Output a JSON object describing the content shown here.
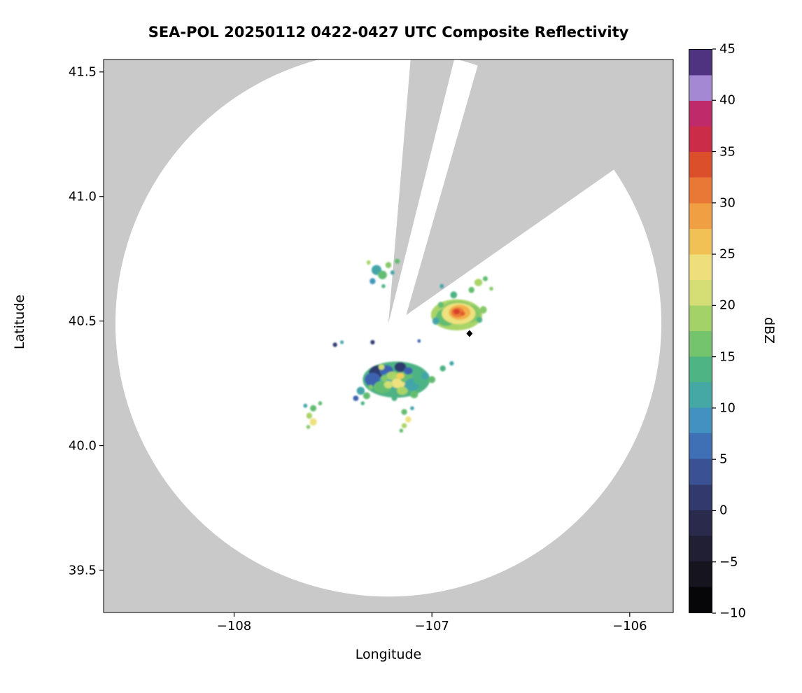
{
  "chart_data": {
    "type": "heatmap",
    "title": "SEA-POL 20250112 0422-0427 UTC Composite Reflectivity",
    "xlabel": "Longitude",
    "ylabel": "Latitude",
    "units": "dBZ",
    "xlim": [
      -108.66,
      -105.78
    ],
    "ylim": [
      39.33,
      41.55
    ],
    "grid": false,
    "x_ticks": [
      {
        "value": -108,
        "label": "−108"
      },
      {
        "value": -107,
        "label": "−107"
      },
      {
        "value": -106,
        "label": "−106"
      }
    ],
    "y_ticks": [
      {
        "value": 39.5,
        "label": "39.5"
      },
      {
        "value": 40.0,
        "label": "40.0"
      },
      {
        "value": 40.5,
        "label": "40.5"
      },
      {
        "value": 41.0,
        "label": "41.0"
      },
      {
        "value": 41.5,
        "label": "41.5"
      }
    ],
    "coverage_color": "#ffffff",
    "no_coverage_color": "#c9c9c9",
    "coverage": {
      "center_lon": -107.22,
      "center_lat": 40.49,
      "radius_lat_deg": 1.096
    },
    "blocked_sectors": [
      {
        "apex_lon": -107.22,
        "apex_lat": 40.49,
        "start_deg": 76.0,
        "end_deg": 85.2
      },
      {
        "apex_lon": -107.13,
        "apex_lat": 40.524,
        "start_deg": 35.0,
        "end_deg": 74.0
      }
    ],
    "radar_marker": {
      "lon": -106.81,
      "lat": 40.45,
      "color": "#000000"
    },
    "echo_format": "lon, lat, width_deg_lon (w), height_deg_lat (h), color_hex (c)",
    "echoes": [
      {
        "lon": -106.875,
        "lat": 40.525,
        "w": 0.26,
        "h": 0.125,
        "c": "#a9d468"
      },
      {
        "lon": -106.93,
        "lat": 40.515,
        "w": 0.1,
        "h": 0.07,
        "c": "#63bd71"
      },
      {
        "lon": -106.8,
        "lat": 40.53,
        "w": 0.09,
        "h": 0.07,
        "c": "#86c968"
      },
      {
        "lon": -106.87,
        "lat": 40.555,
        "w": 0.14,
        "h": 0.05,
        "c": "#86c968"
      },
      {
        "lon": -106.865,
        "lat": 40.53,
        "w": 0.17,
        "h": 0.085,
        "c": "#eee27f"
      },
      {
        "lon": -106.86,
        "lat": 40.535,
        "w": 0.11,
        "h": 0.06,
        "c": "#f2b04c"
      },
      {
        "lon": -106.87,
        "lat": 40.535,
        "w": 0.065,
        "h": 0.04,
        "c": "#ea7c36"
      },
      {
        "lon": -106.875,
        "lat": 40.538,
        "w": 0.035,
        "h": 0.022,
        "c": "#d8402a"
      },
      {
        "lon": -106.845,
        "lat": 40.53,
        "w": 0.025,
        "h": 0.018,
        "c": "#e25b2d"
      },
      {
        "lon": -106.98,
        "lat": 40.5,
        "w": 0.035,
        "h": 0.03,
        "c": "#43a5a8"
      },
      {
        "lon": -106.76,
        "lat": 40.505,
        "w": 0.03,
        "h": 0.025,
        "c": "#4db384"
      },
      {
        "lon": -106.74,
        "lat": 40.545,
        "w": 0.035,
        "h": 0.03,
        "c": "#86c968"
      },
      {
        "lon": -106.955,
        "lat": 40.565,
        "w": 0.03,
        "h": 0.025,
        "c": "#63bd71"
      },
      {
        "lon": -106.89,
        "lat": 40.605,
        "w": 0.035,
        "h": 0.028,
        "c": "#4db384"
      },
      {
        "lon": -106.8,
        "lat": 40.625,
        "w": 0.03,
        "h": 0.025,
        "c": "#63bd71"
      },
      {
        "lon": -106.765,
        "lat": 40.655,
        "w": 0.04,
        "h": 0.03,
        "c": "#a9d468"
      },
      {
        "lon": -106.73,
        "lat": 40.67,
        "w": 0.025,
        "h": 0.02,
        "c": "#63bd71"
      },
      {
        "lon": -106.95,
        "lat": 40.64,
        "w": 0.02,
        "h": 0.018,
        "c": "#43a5a8"
      },
      {
        "lon": -106.7,
        "lat": 40.63,
        "w": 0.02,
        "h": 0.016,
        "c": "#86c968"
      },
      {
        "lon": -107.28,
        "lat": 40.705,
        "w": 0.05,
        "h": 0.04,
        "c": "#43a5a8"
      },
      {
        "lon": -107.25,
        "lat": 40.685,
        "w": 0.045,
        "h": 0.035,
        "c": "#63bd71"
      },
      {
        "lon": -107.3,
        "lat": 40.66,
        "w": 0.03,
        "h": 0.025,
        "c": "#4396bc"
      },
      {
        "lon": -107.22,
        "lat": 40.725,
        "w": 0.03,
        "h": 0.025,
        "c": "#86c968"
      },
      {
        "lon": -107.2,
        "lat": 40.695,
        "w": 0.02,
        "h": 0.018,
        "c": "#43a5a8"
      },
      {
        "lon": -107.32,
        "lat": 40.735,
        "w": 0.02,
        "h": 0.018,
        "c": "#a9d468"
      },
      {
        "lon": -107.245,
        "lat": 40.64,
        "w": 0.02,
        "h": 0.016,
        "c": "#4db384"
      },
      {
        "lon": -107.175,
        "lat": 40.74,
        "w": 0.025,
        "h": 0.02,
        "c": "#63bd71"
      },
      {
        "lon": -107.18,
        "lat": 40.265,
        "w": 0.34,
        "h": 0.145,
        "c": "#4db384"
      },
      {
        "lon": -107.27,
        "lat": 40.29,
        "w": 0.1,
        "h": 0.065,
        "c": "#2f3a6e"
      },
      {
        "lon": -107.3,
        "lat": 40.265,
        "w": 0.08,
        "h": 0.055,
        "c": "#3c63b0"
      },
      {
        "lon": -107.23,
        "lat": 40.3,
        "w": 0.07,
        "h": 0.045,
        "c": "#3c63b0"
      },
      {
        "lon": -107.16,
        "lat": 40.315,
        "w": 0.06,
        "h": 0.04,
        "c": "#2f3a6e"
      },
      {
        "lon": -107.21,
        "lat": 40.26,
        "w": 0.11,
        "h": 0.065,
        "c": "#43a5a8"
      },
      {
        "lon": -107.25,
        "lat": 40.235,
        "w": 0.09,
        "h": 0.05,
        "c": "#63bd71"
      },
      {
        "lon": -107.2,
        "lat": 40.28,
        "w": 0.06,
        "h": 0.035,
        "c": "#a9d468"
      },
      {
        "lon": -107.17,
        "lat": 40.25,
        "w": 0.07,
        "h": 0.04,
        "c": "#eee27f"
      },
      {
        "lon": -107.22,
        "lat": 40.245,
        "w": 0.045,
        "h": 0.03,
        "c": "#cfdf72"
      },
      {
        "lon": -107.13,
        "lat": 40.275,
        "w": 0.065,
        "h": 0.045,
        "c": "#63bd71"
      },
      {
        "lon": -107.1,
        "lat": 40.245,
        "w": 0.075,
        "h": 0.05,
        "c": "#43a5a8"
      },
      {
        "lon": -107.065,
        "lat": 40.265,
        "w": 0.055,
        "h": 0.04,
        "c": "#4db384"
      },
      {
        "lon": -107.12,
        "lat": 40.3,
        "w": 0.045,
        "h": 0.03,
        "c": "#3c63b0"
      },
      {
        "lon": -107.255,
        "lat": 40.315,
        "w": 0.03,
        "h": 0.022,
        "c": "#cfdf72"
      },
      {
        "lon": -107.15,
        "lat": 40.22,
        "w": 0.055,
        "h": 0.032,
        "c": "#a9d468"
      },
      {
        "lon": -107.09,
        "lat": 40.205,
        "w": 0.04,
        "h": 0.03,
        "c": "#63bd71"
      },
      {
        "lon": -107.19,
        "lat": 40.19,
        "w": 0.028,
        "h": 0.022,
        "c": "#4db384"
      },
      {
        "lon": -107.035,
        "lat": 40.28,
        "w": 0.04,
        "h": 0.03,
        "c": "#43a5a8"
      },
      {
        "lon": -107.0,
        "lat": 40.265,
        "w": 0.035,
        "h": 0.028,
        "c": "#63bd71"
      },
      {
        "lon": -106.945,
        "lat": 40.31,
        "w": 0.03,
        "h": 0.024,
        "c": "#4db384"
      },
      {
        "lon": -106.9,
        "lat": 40.33,
        "w": 0.022,
        "h": 0.018,
        "c": "#43a5a8"
      },
      {
        "lon": -107.16,
        "lat": 40.28,
        "w": 0.04,
        "h": 0.025,
        "c": "#f2cf5a"
      },
      {
        "lon": -107.24,
        "lat": 40.27,
        "w": 0.035,
        "h": 0.025,
        "c": "#86c968"
      },
      {
        "lon": -107.49,
        "lat": 40.405,
        "w": 0.022,
        "h": 0.018,
        "c": "#2f3a6e"
      },
      {
        "lon": -107.455,
        "lat": 40.415,
        "w": 0.018,
        "h": 0.015,
        "c": "#43a5a8"
      },
      {
        "lon": -107.3,
        "lat": 40.415,
        "w": 0.022,
        "h": 0.018,
        "c": "#2f3a6e"
      },
      {
        "lon": -107.065,
        "lat": 40.42,
        "w": 0.016,
        "h": 0.014,
        "c": "#3c63b0"
      },
      {
        "lon": -107.6,
        "lat": 40.15,
        "w": 0.032,
        "h": 0.026,
        "c": "#63bd71"
      },
      {
        "lon": -107.62,
        "lat": 40.12,
        "w": 0.03,
        "h": 0.025,
        "c": "#a9d468"
      },
      {
        "lon": -107.6,
        "lat": 40.095,
        "w": 0.036,
        "h": 0.03,
        "c": "#eee27f"
      },
      {
        "lon": -107.64,
        "lat": 40.16,
        "w": 0.02,
        "h": 0.017,
        "c": "#43a5a8"
      },
      {
        "lon": -107.565,
        "lat": 40.17,
        "w": 0.02,
        "h": 0.017,
        "c": "#63bd71"
      },
      {
        "lon": -107.625,
        "lat": 40.075,
        "w": 0.02,
        "h": 0.016,
        "c": "#86c968"
      },
      {
        "lon": -107.36,
        "lat": 40.22,
        "w": 0.04,
        "h": 0.032,
        "c": "#43a5a8"
      },
      {
        "lon": -107.33,
        "lat": 40.2,
        "w": 0.036,
        "h": 0.028,
        "c": "#63bd71"
      },
      {
        "lon": -107.385,
        "lat": 40.19,
        "w": 0.028,
        "h": 0.022,
        "c": "#3c63b0"
      },
      {
        "lon": -107.31,
        "lat": 40.235,
        "w": 0.022,
        "h": 0.018,
        "c": "#86c968"
      },
      {
        "lon": -107.35,
        "lat": 40.17,
        "w": 0.02,
        "h": 0.016,
        "c": "#4db384"
      },
      {
        "lon": -107.14,
        "lat": 40.135,
        "w": 0.03,
        "h": 0.024,
        "c": "#63bd71"
      },
      {
        "lon": -107.12,
        "lat": 40.105,
        "w": 0.03,
        "h": 0.025,
        "c": "#eee27f"
      },
      {
        "lon": -107.14,
        "lat": 40.08,
        "w": 0.026,
        "h": 0.02,
        "c": "#a9d468"
      },
      {
        "lon": -107.1,
        "lat": 40.15,
        "w": 0.02,
        "h": 0.016,
        "c": "#43a5a8"
      },
      {
        "lon": -107.155,
        "lat": 40.06,
        "w": 0.02,
        "h": 0.016,
        "c": "#63bd71"
      }
    ],
    "colorbar": {
      "label": "dBZ",
      "min": -10,
      "max": 45,
      "band_width": 2.5,
      "band_colors": [
        "#060608",
        "#15141f",
        "#201f33",
        "#2a2a4d",
        "#323a6d",
        "#3a5193",
        "#3f6fb5",
        "#4391c1",
        "#45a8a4",
        "#4fb483",
        "#74c36d",
        "#a3d269",
        "#d4de75",
        "#eede7c",
        "#f2c156",
        "#f09f43",
        "#e97837",
        "#dc4f2b",
        "#cb2c48",
        "#bf2a6a",
        "#a588d4",
        "#4f3280"
      ],
      "ticks": [
        {
          "value": -10,
          "label": "−10"
        },
        {
          "value": -5,
          "label": "−5"
        },
        {
          "value": 0,
          "label": "0"
        },
        {
          "value": 5,
          "label": "5"
        },
        {
          "value": 10,
          "label": "10"
        },
        {
          "value": 15,
          "label": "15"
        },
        {
          "value": 20,
          "label": "20"
        },
        {
          "value": 25,
          "label": "25"
        },
        {
          "value": 30,
          "label": "30"
        },
        {
          "value": 35,
          "label": "35"
        },
        {
          "value": 40,
          "label": "40"
        },
        {
          "value": 45,
          "label": "45"
        }
      ]
    }
  }
}
